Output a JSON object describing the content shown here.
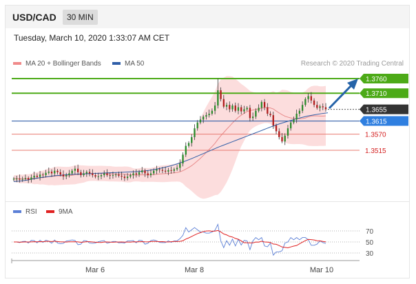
{
  "header": {
    "symbol": "USD/CAD",
    "timeframe": "30 MIN"
  },
  "datetime": "Tuesday, March 10, 2020 1:33:07 AM CET",
  "legend": [
    {
      "label": "MA 20 + Bollinger Bands",
      "color": "#f08a8a"
    },
    {
      "label": "MA 50",
      "color": "#2f5ea8"
    }
  ],
  "credit": "Research © 2020 Trading Central",
  "rsi_legend": [
    {
      "label": "RSI",
      "color": "#5b7fd6"
    },
    {
      "label": "9MA",
      "color": "#e02020"
    }
  ],
  "colors": {
    "up": "#2a8a2a",
    "down": "#b01c1c",
    "resistance": "#4caa17",
    "support": "#e8796f",
    "ma50": "#2f5ea8",
    "current": "#333333",
    "arrow": "#2563a8",
    "band": "#fbd2d2"
  },
  "chart_data": [
    {
      "type": "candlestick",
      "title": "USD/CAD 30 MIN",
      "x_ticks": [
        "Mar 6",
        "Mar 8",
        "Mar 10"
      ],
      "ylim": [
        1.34,
        1.378
      ],
      "levels": [
        {
          "value": 1.376,
          "label": "1.3760",
          "kind": "resistance"
        },
        {
          "value": 1.371,
          "label": "1.3710",
          "kind": "resistance"
        },
        {
          "value": 1.3655,
          "label": "1.3655",
          "kind": "current"
        },
        {
          "value": 1.3615,
          "label": "1.3615",
          "kind": "ma50"
        },
        {
          "value": 1.357,
          "label": "1.3570",
          "kind": "support"
        },
        {
          "value": 1.3515,
          "label": "1.3515",
          "kind": "support"
        }
      ],
      "closes": [
        1.3418,
        1.3418,
        1.3415,
        1.3417,
        1.342,
        1.3415,
        1.3422,
        1.3428,
        1.3424,
        1.3432,
        1.343,
        1.3438,
        1.3442,
        1.3436,
        1.3445,
        1.344,
        1.3432,
        1.3426,
        1.343,
        1.3436,
        1.3445,
        1.3452,
        1.344,
        1.343,
        1.3436,
        1.3441,
        1.3436,
        1.343,
        1.3425,
        1.3426,
        1.343,
        1.3436,
        1.343,
        1.3428,
        1.343,
        1.3432,
        1.3428,
        1.3425,
        1.342,
        1.3425,
        1.343,
        1.3436,
        1.3432,
        1.344,
        1.3446,
        1.3436,
        1.343,
        1.3436,
        1.3445,
        1.345,
        1.3448,
        1.3445,
        1.3442,
        1.3447,
        1.3445,
        1.345,
        1.3455,
        1.347,
        1.35,
        1.353,
        1.354,
        1.356,
        1.359,
        1.361,
        1.362,
        1.363,
        1.3635,
        1.364,
        1.365,
        1.3668,
        1.372,
        1.369,
        1.3664,
        1.367,
        1.3655,
        1.3668,
        1.365,
        1.3662,
        1.3648,
        1.3655,
        1.366,
        1.3625,
        1.363,
        1.365,
        1.366,
        1.368,
        1.3662,
        1.364,
        1.3635,
        1.36,
        1.358,
        1.356,
        1.3545,
        1.3565,
        1.359,
        1.361,
        1.362,
        1.364,
        1.365,
        1.367,
        1.369,
        1.37,
        1.3685,
        1.367,
        1.366,
        1.3665,
        1.3662,
        1.3655
      ],
      "ma50": [
        1.3408,
        1.341,
        1.3413,
        1.3418,
        1.3422,
        1.3425,
        1.3428,
        1.343,
        1.3432,
        1.3433,
        1.3434,
        1.3435,
        1.3436,
        1.3437,
        1.3438,
        1.3439,
        1.344,
        1.3441,
        1.3442,
        1.3444,
        1.3447,
        1.3451,
        1.3456,
        1.3462,
        1.3469,
        1.3477,
        1.3486,
        1.3496,
        1.3506,
        1.3516,
        1.3526,
        1.3535,
        1.3544,
        1.3553,
        1.3562,
        1.3571,
        1.358,
        1.3589,
        1.3598,
        1.3606,
        1.3613,
        1.362,
        1.3626,
        1.3632,
        1.3636,
        1.364,
        1.3643
      ],
      "rsi_levels": [
        70,
        50,
        30
      ]
    }
  ]
}
